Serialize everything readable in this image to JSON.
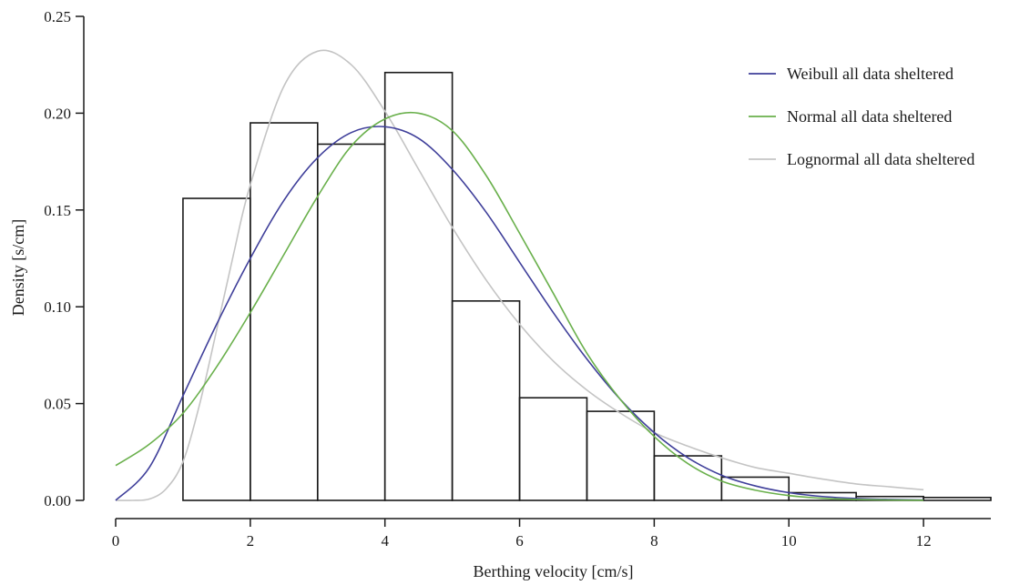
{
  "chart_data": {
    "type": "bar",
    "title": "",
    "xlabel": "Berthing velocity [cm/s]",
    "ylabel": "Density [s/cm]",
    "xlim": [
      0,
      13
    ],
    "ylim": [
      0,
      0.25
    ],
    "x_ticks": [
      0,
      2,
      4,
      6,
      8,
      10,
      12
    ],
    "x_tick_labels": [
      "0",
      "2",
      "4",
      "6",
      "8",
      "10",
      "12"
    ],
    "y_ticks": [
      0,
      0.05,
      0.1,
      0.15,
      0.2,
      0.25
    ],
    "y_tick_labels": [
      "0.00",
      "0.05",
      "0.10",
      "0.15",
      "0.20",
      "0.25"
    ],
    "histogram": {
      "bins": [
        {
          "x0": 1,
          "x1": 2,
          "density": 0.156
        },
        {
          "x0": 2,
          "x1": 3,
          "density": 0.195
        },
        {
          "x0": 3,
          "x1": 4,
          "density": 0.184
        },
        {
          "x0": 4,
          "x1": 5,
          "density": 0.221
        },
        {
          "x0": 5,
          "x1": 6,
          "density": 0.103
        },
        {
          "x0": 6,
          "x1": 7,
          "density": 0.053
        },
        {
          "x0": 7,
          "x1": 8,
          "density": 0.046
        },
        {
          "x0": 8,
          "x1": 9,
          "density": 0.023
        },
        {
          "x0": 9,
          "x1": 10,
          "density": 0.012
        },
        {
          "x0": 10,
          "x1": 11,
          "density": 0.004
        },
        {
          "x0": 11,
          "x1": 12,
          "density": 0.002
        },
        {
          "x0": 12,
          "x1": 13,
          "density": 0.0015
        }
      ]
    },
    "series": [
      {
        "name": "Weibull all data sheltered",
        "color": "#3f3f9a",
        "x": [
          0,
          0.5,
          1,
          1.5,
          2,
          2.5,
          3,
          3.5,
          4,
          4.5,
          5,
          5.5,
          6,
          6.5,
          7,
          7.5,
          8,
          8.5,
          9,
          9.5,
          10,
          10.5,
          11,
          11.5,
          12
        ],
        "y": [
          0,
          0.017,
          0.054,
          0.091,
          0.125,
          0.155,
          0.177,
          0.19,
          0.193,
          0.187,
          0.171,
          0.149,
          0.123,
          0.097,
          0.073,
          0.052,
          0.035,
          0.022,
          0.013,
          0.0075,
          0.004,
          0.002,
          0.001,
          0.0005,
          0.0002
        ]
      },
      {
        "name": "Normal all data sheltered",
        "color": "#6ab04c",
        "x": [
          0,
          0.5,
          1,
          1.5,
          2,
          2.5,
          3,
          3.5,
          4,
          4.5,
          5,
          5.5,
          6,
          6.5,
          7,
          7.5,
          8,
          8.5,
          9,
          9.5,
          10,
          10.5,
          11,
          11.5,
          12
        ],
        "y": [
          0.018,
          0.029,
          0.045,
          0.069,
          0.097,
          0.127,
          0.157,
          0.183,
          0.197,
          0.2,
          0.191,
          0.168,
          0.138,
          0.107,
          0.076,
          0.052,
          0.033,
          0.019,
          0.01,
          0.0053,
          0.0025,
          0.0011,
          0.0005,
          0.0002,
          0.0001
        ]
      },
      {
        "name": "Lognormal all data sheltered",
        "color": "#c4c4c4",
        "x": [
          0,
          0.25,
          0.5,
          0.75,
          1,
          1.25,
          1.5,
          1.75,
          2,
          2.5,
          3,
          3.5,
          4,
          4.5,
          5,
          5.5,
          6,
          6.5,
          7,
          7.5,
          8,
          8.5,
          9,
          9.5,
          10,
          10.5,
          11,
          11.5,
          12
        ],
        "y": [
          0,
          0,
          0.0007,
          0.006,
          0.02,
          0.05,
          0.088,
          0.127,
          0.163,
          0.214,
          0.232,
          0.225,
          0.201,
          0.171,
          0.141,
          0.114,
          0.091,
          0.072,
          0.057,
          0.045,
          0.035,
          0.028,
          0.022,
          0.017,
          0.014,
          0.011,
          0.0085,
          0.007,
          0.0055
        ]
      }
    ],
    "legend": {
      "placement": "top-right"
    }
  }
}
